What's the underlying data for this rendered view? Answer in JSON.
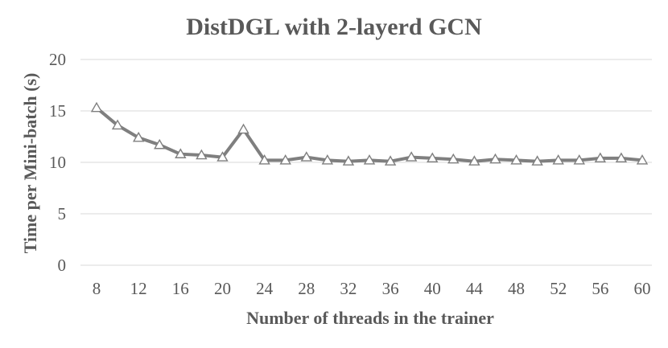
{
  "chart_data": {
    "type": "line",
    "title": "DistDGL with 2-layerd GCN",
    "xlabel": "Number of  threads in the trainer",
    "ylabel": "Time per Mini-batch (s)",
    "ylim": [
      0,
      20
    ],
    "yticks": [
      0,
      5,
      10,
      15,
      20
    ],
    "xticks": [
      8,
      12,
      16,
      20,
      24,
      28,
      32,
      36,
      40,
      44,
      48,
      52,
      56,
      60
    ],
    "xlim": [
      8,
      60
    ],
    "grid": "horizontal",
    "series": [
      {
        "color": "#7f7f7f",
        "marker": "triangle",
        "x": [
          8,
          10,
          12,
          14,
          16,
          18,
          20,
          22,
          24,
          26,
          28,
          30,
          32,
          34,
          36,
          38,
          40,
          42,
          44,
          46,
          48,
          50,
          52,
          54,
          56,
          58,
          60
        ],
        "values": [
          15.3,
          13.6,
          12.4,
          11.7,
          10.8,
          10.7,
          10.5,
          13.2,
          10.2,
          10.2,
          10.5,
          10.2,
          10.1,
          10.2,
          10.1,
          10.5,
          10.4,
          10.3,
          10.1,
          10.3,
          10.2,
          10.1,
          10.2,
          10.2,
          10.4,
          10.4,
          10.2
        ]
      }
    ]
  }
}
